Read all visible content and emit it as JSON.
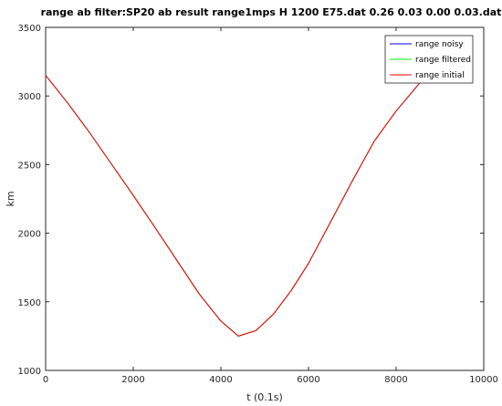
{
  "chart_data": {
    "type": "line",
    "title": "range ab filter:SP20 ab result range1mps H 1200 E75.dat 0.26 0.03 0.00 0.03.dat",
    "xlabel": "t (0.1s)",
    "ylabel": "km",
    "xlim": [
      0,
      10000
    ],
    "ylim": [
      1000,
      3500
    ],
    "xticks": [
      0,
      2000,
      4000,
      6000,
      8000,
      10000
    ],
    "yticks": [
      1000,
      1500,
      2000,
      2500,
      3000,
      3500
    ],
    "xtick_labels": [
      "0",
      "2000",
      "4000",
      "6000",
      "8000",
      "10000"
    ],
    "ytick_labels": [
      "1000",
      "1500",
      "2000",
      "2500",
      "3000",
      "3500"
    ],
    "grid": false,
    "legend_position": "top-right",
    "series": [
      {
        "name": "range noisy",
        "color": "#0000ff",
        "x": [
          0,
          500,
          1000,
          1500,
          2000,
          2500,
          3000,
          3500,
          4000,
          4400,
          4800,
          5200,
          5600,
          6000,
          6500,
          7000,
          7500,
          8000,
          8500,
          8800
        ],
        "y": [
          3150,
          2950,
          2735,
          2505,
          2275,
          2040,
          1800,
          1560,
          1360,
          1250,
          1290,
          1410,
          1580,
          1780,
          2080,
          2380,
          2670,
          2890,
          3080,
          3200
        ]
      },
      {
        "name": "range filtered",
        "color": "#00ff00",
        "x": [
          0,
          500,
          1000,
          1500,
          2000,
          2500,
          3000,
          3500,
          4000,
          4400,
          4800,
          5200,
          5600,
          6000,
          6500,
          7000,
          7500,
          8000,
          8500,
          8800
        ],
        "y": [
          3150,
          2950,
          2735,
          2505,
          2275,
          2040,
          1800,
          1560,
          1360,
          1250,
          1290,
          1410,
          1580,
          1780,
          2080,
          2380,
          2670,
          2890,
          3080,
          3200
        ]
      },
      {
        "name": "range initial",
        "color": "#ff0000",
        "x": [
          0,
          500,
          1000,
          1500,
          2000,
          2500,
          3000,
          3500,
          4000,
          4400,
          4800,
          5200,
          5600,
          6000,
          6500,
          7000,
          7500,
          8000,
          8500,
          8800
        ],
        "y": [
          3150,
          2950,
          2735,
          2505,
          2275,
          2040,
          1800,
          1560,
          1360,
          1250,
          1290,
          1410,
          1580,
          1780,
          2080,
          2380,
          2670,
          2890,
          3080,
          3200
        ]
      }
    ]
  }
}
